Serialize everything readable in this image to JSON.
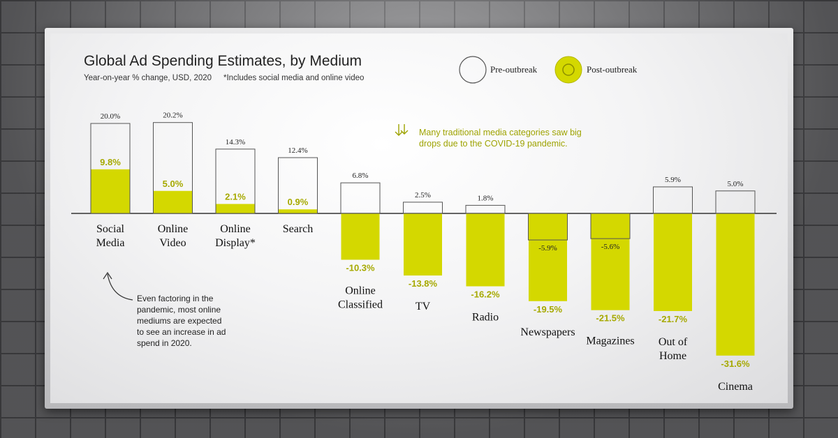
{
  "chart_data": {
    "type": "bar",
    "title": "Global Ad Spending Estimates, by Medium",
    "subtitle": "Year-on-year % change, USD, 2020",
    "footnote": "*Includes social media and online video",
    "categories": [
      [
        "Social",
        "Media"
      ],
      [
        "Online",
        "Video"
      ],
      [
        "Online",
        "Display*"
      ],
      [
        "Search"
      ],
      [
        "Online",
        "Classified"
      ],
      [
        "TV"
      ],
      [
        "Radio"
      ],
      [
        "Newspapers"
      ],
      [
        "Magazines"
      ],
      [
        "Out of",
        "Home"
      ],
      [
        "Cinema"
      ]
    ],
    "series": [
      {
        "name": "Pre-outbreak",
        "values": [
          20.0,
          20.2,
          14.3,
          12.4,
          6.8,
          2.5,
          1.8,
          -5.9,
          -5.6,
          5.9,
          5.0
        ]
      },
      {
        "name": "Post-outbreak",
        "values": [
          9.8,
          5.0,
          2.1,
          0.9,
          -10.3,
          -13.8,
          -16.2,
          -19.5,
          -21.5,
          -21.7,
          -31.6
        ]
      }
    ],
    "pre_labels": [
      "20.0%",
      "20.2%",
      "14.3%",
      "12.4%",
      "6.8%",
      "2.5%",
      "1.8%",
      "-5.9%",
      "-5.6%",
      "5.9%",
      "5.0%"
    ],
    "post_labels": [
      "9.8%",
      "5.0%",
      "2.1%",
      "0.9%",
      "-10.3%",
      "-13.8%",
      "-16.2%",
      "-19.5%",
      "-21.5%",
      "-21.7%",
      "-31.6%"
    ],
    "ylim": [
      -33,
      21
    ],
    "annotations": {
      "top": [
        "Many traditional media categories saw big",
        "drops due to the COVID-19 pandemic."
      ],
      "bottom": [
        "Even factoring in the",
        "pandemic, most online",
        "mediums are expected",
        "to see an increase in ad",
        "spend in 2020."
      ]
    },
    "legend": {
      "position": "top-right"
    },
    "colors": {
      "post": "#d4d800",
      "post_text": "#a6a900",
      "pre_outline": "#555555",
      "annotation": "#9ea300"
    }
  }
}
